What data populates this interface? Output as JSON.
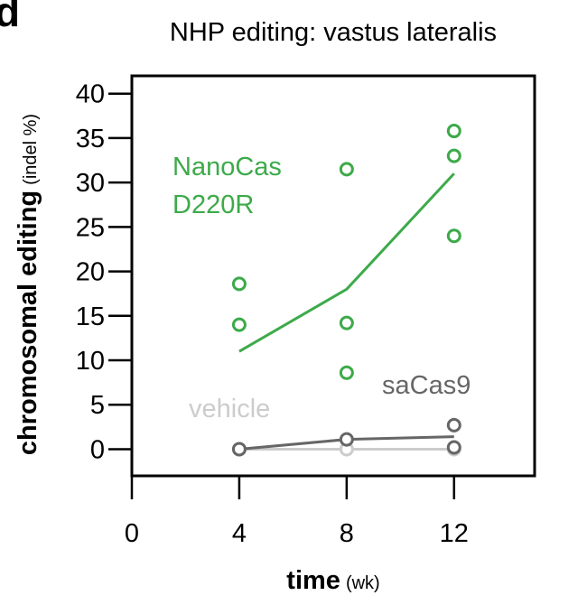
{
  "panel_letter": "d",
  "chart_data": {
    "type": "line",
    "title": "NHP editing: vastus lateralis",
    "xlabel": "time",
    "xlabel_unit": "(wk)",
    "ylabel": "chromosomal editing",
    "ylabel_unit": "(indel %)",
    "xlim": [
      0,
      15
    ],
    "ylim": [
      -3,
      42
    ],
    "xticks": [
      0,
      4,
      8,
      12
    ],
    "yticks": [
      0,
      5,
      10,
      15,
      20,
      25,
      30,
      35,
      40
    ],
    "grid": false,
    "series": [
      {
        "name": "NanoCas D220R",
        "label_lines": [
          "NanoCas",
          "D220R"
        ],
        "color": "#3daa4a",
        "line": {
          "x": [
            4,
            8,
            12
          ],
          "y": [
            11,
            18,
            31
          ]
        },
        "points": {
          "x": [
            4,
            4,
            8,
            8,
            8,
            12,
            12,
            12
          ],
          "y": [
            18.6,
            14,
            31.5,
            14.2,
            8.6,
            35.8,
            33,
            24
          ]
        }
      },
      {
        "name": "saCas9",
        "label_lines": [
          "saCas9"
        ],
        "color": "#666666",
        "line": {
          "x": [
            4,
            8,
            12
          ],
          "y": [
            0,
            1.1,
            1.4
          ]
        },
        "points": {
          "x": [
            4,
            8,
            12,
            12
          ],
          "y": [
            0,
            1.1,
            2.7,
            0.2
          ]
        }
      },
      {
        "name": "vehicle",
        "label_lines": [
          "vehicle"
        ],
        "color": "#cccccc",
        "line": {
          "x": [
            4,
            8,
            12
          ],
          "y": [
            0,
            0,
            0
          ]
        },
        "points": {
          "x": [
            4,
            8,
            12
          ],
          "y": [
            0,
            0,
            0
          ]
        }
      }
    ]
  }
}
